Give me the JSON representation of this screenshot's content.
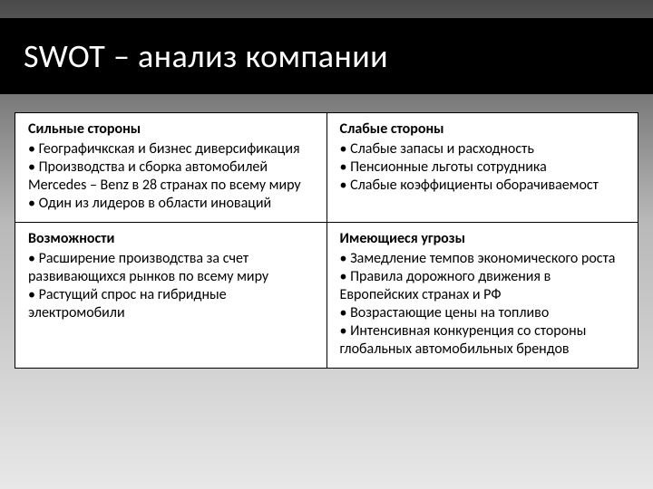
{
  "slide": {
    "title": "SWOT – анализ компании",
    "title_color": "#ffffff",
    "title_bg": "#000000",
    "title_fontsize": 36,
    "background_gradient": [
      "#4a4a4a",
      "#b8b8b8",
      "#e8e8e8"
    ]
  },
  "table": {
    "border_color": "#000000",
    "cell_bg": "#ffffff",
    "text_color": "#000000",
    "body_fontsize": 16,
    "cells": {
      "strengths": {
        "heading": "Сильные стороны",
        "lines": [
          "• Географичкская и бизнес диверсификация",
          "• Производства и сборка автомобилей Mercedes – Benz в 28 странах по всему миру",
          "• Один из лидеров в области иноваций"
        ]
      },
      "weaknesses": {
        "heading": "Слабые стороны",
        "lines": [
          "• Слабые запасы и расходность",
          "• Пенсионные льготы сотрудника",
          "• Слабые коэффициенты оборачиваемост"
        ]
      },
      "opportunities": {
        "heading": "Возможности",
        "lines": [
          "• Расширение производства за счет развивающихся рынков по всему миру",
          "• Растущий спрос на гибридные электромобили"
        ]
      },
      "threats": {
        "heading": "Имеющиеся угрозы",
        "lines": [
          "• Замедление темпов экономического роста",
          "• Правила дорожного движения в Европейских странах и РФ",
          "• Возрастающие цены на топливо",
          "• Интенсивная конкуренция со стороны глобальных автомобильных брендов"
        ]
      }
    }
  }
}
